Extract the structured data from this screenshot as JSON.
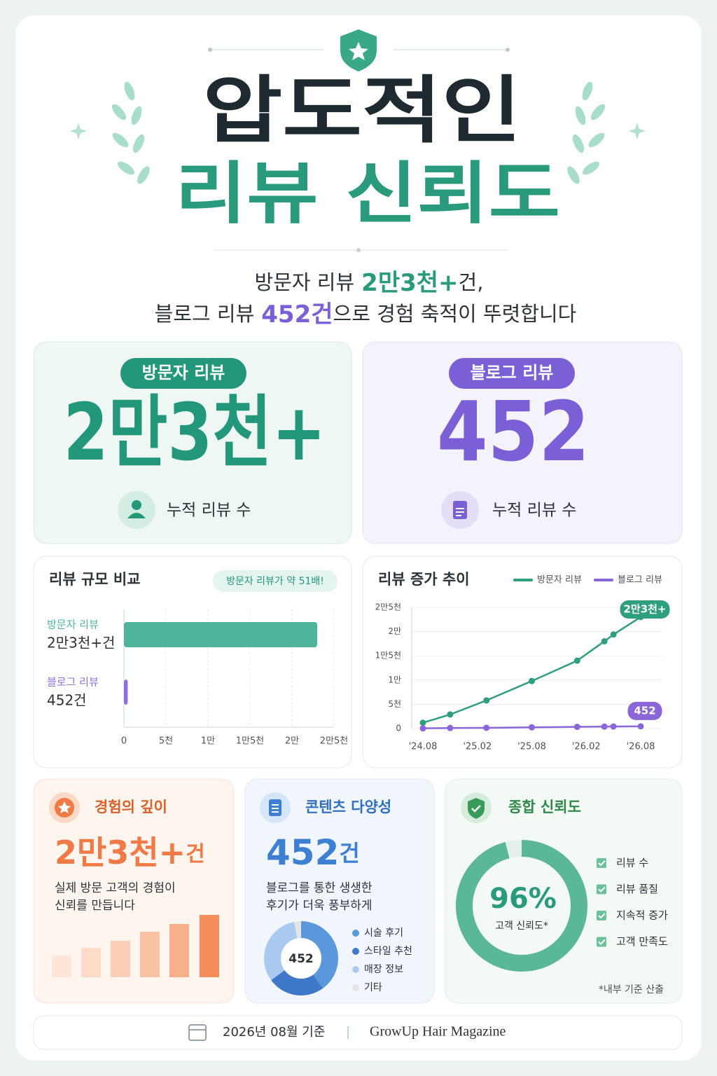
{
  "header": {
    "title_line1": "압도적인",
    "title_line2": "리뷰 신뢰도"
  },
  "summary": {
    "line1": [
      "방문자 리뷰",
      "2만3천+",
      "건,"
    ],
    "line2": [
      "블로그 리뷰",
      "452건",
      "으로 경험 축적이 뚜렷합니다"
    ]
  },
  "stat_cards": [
    {
      "badge": "방문자 리뷰",
      "value": "2만3천+",
      "caption": "누적 리뷰 수"
    },
    {
      "badge": "블로그 리뷰",
      "value": "452",
      "caption": "누적 리뷰 수"
    }
  ],
  "bar_chart": {
    "type": "bar",
    "orientation": "horizontal",
    "title": "리뷰 규모 비교",
    "annotation": "방문자 리뷰가 약 51배!",
    "categories": [
      "방문자 리뷰",
      "블로그 리뷰"
    ],
    "values": [
      23000,
      452
    ],
    "value_labels": [
      "2만3천+건",
      "452건"
    ],
    "colors": [
      "#4fb59a",
      "#8e6fde"
    ],
    "xlim": [
      0,
      25000
    ],
    "xticks": [
      0,
      {
        "value": 5000,
        "label": "5천"
      },
      {
        "value": 10000,
        "label": "1만"
      },
      {
        "value": 15000,
        "label": "1만5천"
      },
      {
        "value": 20000,
        "label": "2만"
      },
      {
        "value": 25000,
        "label": "2만5천"
      }
    ],
    "grid": true
  },
  "line_chart": {
    "type": "line",
    "title": "리뷰 증가 추이",
    "x": [
      "'24.08",
      "'24.11",
      "'25.03",
      "'25.08",
      "'26.01",
      "'26.04",
      "'26.05",
      "'26.08"
    ],
    "series": [
      {
        "name": "방문자 리뷰",
        "color": "#2f9e7f",
        "values": [
          1200,
          2900,
          5800,
          9800,
          14000,
          18000,
          19400,
          23000
        ],
        "value_labels": [
          null,
          null,
          null,
          null,
          null,
          null,
          null,
          "2만3천+"
        ]
      },
      {
        "name": "블로그 리뷰",
        "color": "#8a66d9",
        "values": [
          50,
          100,
          150,
          250,
          350,
          400,
          420,
          452
        ],
        "value_labels": [
          null,
          null,
          null,
          null,
          null,
          null,
          null,
          "452"
        ]
      }
    ],
    "ylim": [
      0,
      25000
    ],
    "yticks": [
      0,
      {
        "value": 5000,
        "label": "5천"
      },
      {
        "value": 10000,
        "label": "1만"
      },
      {
        "value": 15000,
        "label": "1만5천"
      },
      {
        "value": 20000,
        "label": "2만"
      },
      {
        "value": 25000,
        "label": "2만5천"
      }
    ],
    "xticks": [
      "'24.08",
      "'25.02",
      "'25.08",
      "'26.02",
      "'26.08"
    ],
    "legend": "top-right",
    "grid": true
  },
  "detail_cards": [
    {
      "title": "경험의 깊이",
      "value": "2만3천+",
      "unit": "건",
      "description": [
        "실제 방문 고객의 경험이",
        "신뢰를 만듭니다"
      ]
    },
    {
      "title": "콘텐츠 다양성",
      "value": "452",
      "unit": "건",
      "description": [
        "블로그를 통한 생생한",
        "후기가 더욱 풍부하게"
      ]
    },
    {
      "title": "종합 신뢰도"
    }
  ],
  "content_pie": {
    "type": "pie",
    "center_label": "452",
    "categories": [
      "시술 후기",
      "스타일 추천",
      "매장 정보",
      "기타"
    ],
    "values": [
      40,
      25,
      32,
      3
    ],
    "colors": [
      "#5b97db",
      "#3f78c8",
      "#a9c9ee",
      "#e2e4e8"
    ]
  },
  "trust_gauge": {
    "type": "gauge",
    "value": 96,
    "value_label": "96%",
    "caption": "고객 신뢰도*",
    "ylim": [
      0,
      100
    ],
    "color": "#5bb896"
  },
  "checklist": [
    "리뷰 수",
    "리뷰 품질",
    "지속적 증가",
    "고객 만족도"
  ],
  "footnote": "*내부 기준 산출",
  "footer": {
    "date": "2026년 08월 기준",
    "brand": "GrowUp Hair Magazine"
  }
}
